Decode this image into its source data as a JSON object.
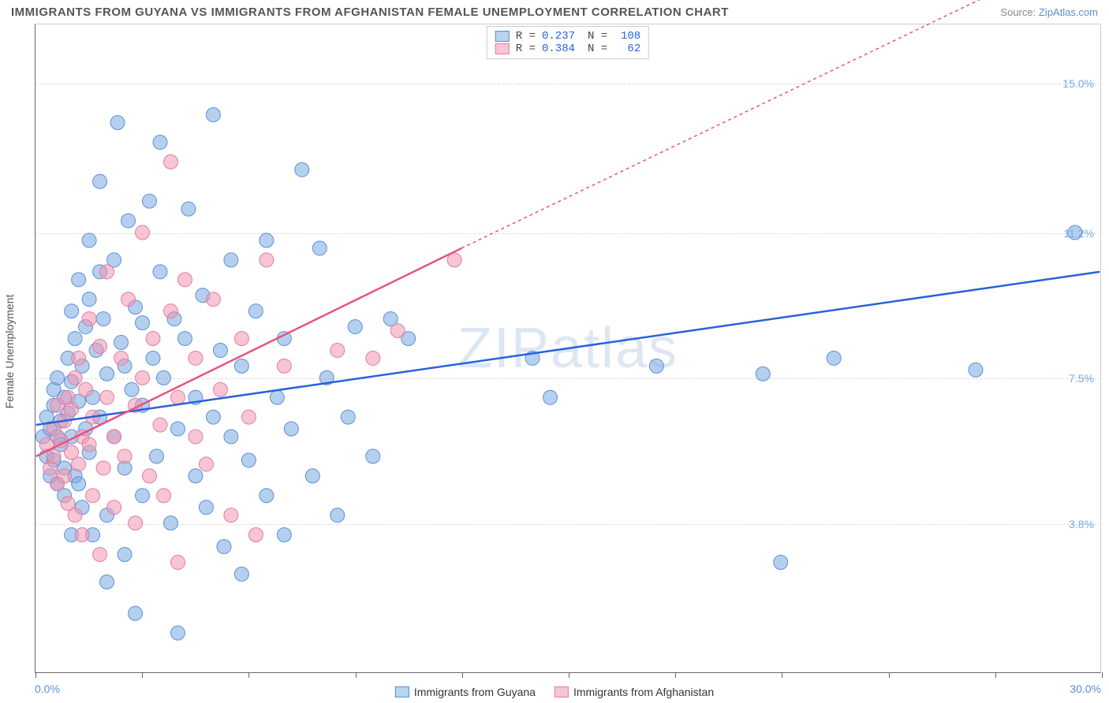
{
  "title": "IMMIGRANTS FROM GUYANA VS IMMIGRANTS FROM AFGHANISTAN FEMALE UNEMPLOYMENT CORRELATION CHART",
  "source_label": "Source:",
  "source_name": "ZipAtlas.com",
  "watermark": "ZIPatlas",
  "yaxis_title": "Female Unemployment",
  "chart": {
    "type": "scatter",
    "xlim": [
      0,
      30
    ],
    "ylim": [
      0,
      16.5
    ],
    "x_tick_positions": [
      0,
      3,
      6,
      9,
      12,
      15,
      18,
      21,
      24,
      27,
      30
    ],
    "x_min_label": "0.0%",
    "x_max_label": "30.0%",
    "y_gridlines": [
      3.8,
      7.5,
      11.2,
      15.0
    ],
    "y_tick_labels": [
      "3.8%",
      "7.5%",
      "11.2%",
      "15.0%"
    ],
    "background_color": "#ffffff",
    "grid_color": "#dddddd",
    "axis_color": "#666666",
    "label_color_blue": "#5b8fd6"
  },
  "series": [
    {
      "name": "Immigrants from Guyana",
      "color_fill": "rgba(120,170,225,0.55)",
      "color_stroke": "#5b8fd6",
      "swatch_fill": "#b8d4f0",
      "swatch_border": "#5b8fd6",
      "trend_color": "#2962d9",
      "trend_dash": "none",
      "trend": {
        "x1": 0,
        "y1": 6.3,
        "x2": 30,
        "y2": 10.2,
        "extrapolate": false
      },
      "R": "0.237",
      "N": "108",
      "points": [
        [
          0.2,
          6.0
        ],
        [
          0.3,
          6.5
        ],
        [
          0.3,
          5.5
        ],
        [
          0.4,
          6.2
        ],
        [
          0.4,
          5.0
        ],
        [
          0.5,
          6.8
        ],
        [
          0.5,
          7.2
        ],
        [
          0.5,
          5.4
        ],
        [
          0.6,
          6.0
        ],
        [
          0.6,
          4.8
        ],
        [
          0.6,
          7.5
        ],
        [
          0.7,
          5.8
        ],
        [
          0.7,
          6.4
        ],
        [
          0.8,
          7.0
        ],
        [
          0.8,
          5.2
        ],
        [
          0.8,
          4.5
        ],
        [
          0.9,
          6.6
        ],
        [
          0.9,
          8.0
        ],
        [
          1.0,
          6.0
        ],
        [
          1.0,
          9.2
        ],
        [
          1.0,
          7.4
        ],
        [
          1.1,
          5.0
        ],
        [
          1.1,
          8.5
        ],
        [
          1.2,
          6.9
        ],
        [
          1.2,
          10.0
        ],
        [
          1.3,
          7.8
        ],
        [
          1.3,
          4.2
        ],
        [
          1.4,
          8.8
        ],
        [
          1.4,
          6.2
        ],
        [
          1.5,
          9.5
        ],
        [
          1.5,
          5.6
        ],
        [
          1.5,
          11.0
        ],
        [
          1.6,
          7.0
        ],
        [
          1.6,
          3.5
        ],
        [
          1.7,
          8.2
        ],
        [
          1.8,
          12.5
        ],
        [
          1.8,
          6.5
        ],
        [
          1.9,
          9.0
        ],
        [
          2.0,
          7.6
        ],
        [
          2.0,
          4.0
        ],
        [
          2.0,
          2.3
        ],
        [
          2.2,
          10.5
        ],
        [
          2.2,
          6.0
        ],
        [
          2.3,
          14.0
        ],
        [
          2.4,
          8.4
        ],
        [
          2.5,
          5.2
        ],
        [
          2.5,
          3.0
        ],
        [
          2.6,
          11.5
        ],
        [
          2.7,
          7.2
        ],
        [
          2.8,
          9.3
        ],
        [
          2.8,
          1.5
        ],
        [
          3.0,
          6.8
        ],
        [
          3.0,
          4.5
        ],
        [
          3.2,
          12.0
        ],
        [
          3.3,
          8.0
        ],
        [
          3.4,
          5.5
        ],
        [
          3.5,
          10.2
        ],
        [
          3.5,
          13.5
        ],
        [
          3.6,
          7.5
        ],
        [
          3.8,
          3.8
        ],
        [
          3.9,
          9.0
        ],
        [
          4.0,
          6.2
        ],
        [
          4.0,
          1.0
        ],
        [
          4.2,
          8.5
        ],
        [
          4.3,
          11.8
        ],
        [
          4.5,
          5.0
        ],
        [
          4.5,
          7.0
        ],
        [
          4.7,
          9.6
        ],
        [
          4.8,
          4.2
        ],
        [
          5.0,
          6.5
        ],
        [
          5.0,
          14.2
        ],
        [
          5.2,
          8.2
        ],
        [
          5.3,
          3.2
        ],
        [
          5.5,
          10.5
        ],
        [
          5.5,
          6.0
        ],
        [
          5.8,
          7.8
        ],
        [
          5.8,
          2.5
        ],
        [
          6.0,
          5.4
        ],
        [
          6.2,
          9.2
        ],
        [
          6.5,
          11.0
        ],
        [
          6.5,
          4.5
        ],
        [
          6.8,
          7.0
        ],
        [
          7.0,
          8.5
        ],
        [
          7.0,
          3.5
        ],
        [
          7.2,
          6.2
        ],
        [
          7.5,
          12.8
        ],
        [
          7.8,
          5.0
        ],
        [
          8.0,
          10.8
        ],
        [
          8.2,
          7.5
        ],
        [
          8.5,
          4.0
        ],
        [
          8.8,
          6.5
        ],
        [
          9.0,
          8.8
        ],
        [
          9.5,
          5.5
        ],
        [
          10.0,
          9.0
        ],
        [
          10.5,
          8.5
        ],
        [
          14.0,
          8.0
        ],
        [
          14.5,
          7.0
        ],
        [
          17.5,
          7.8
        ],
        [
          20.5,
          7.6
        ],
        [
          21.0,
          2.8
        ],
        [
          22.5,
          8.0
        ],
        [
          26.5,
          7.7
        ],
        [
          29.3,
          11.2
        ],
        [
          1.0,
          3.5
        ],
        [
          1.2,
          4.8
        ],
        [
          1.8,
          10.2
        ],
        [
          2.5,
          7.8
        ],
        [
          3.0,
          8.9
        ]
      ]
    },
    {
      "name": "Immigrants from Afghanistan",
      "color_fill": "rgba(240,150,175,0.55)",
      "color_stroke": "#e57ba0",
      "swatch_fill": "#f5c7d5",
      "swatch_border": "#e57ba0",
      "trend_color": "#e5537e",
      "trend_dash": "4,4",
      "trend": {
        "x1": 0,
        "y1": 5.5,
        "x2": 12,
        "y2": 10.8,
        "extrapolate_x2": 30,
        "extrapolate_y2": 18.6
      },
      "R": "0.384",
      "N": "62",
      "points": [
        [
          0.3,
          5.8
        ],
        [
          0.4,
          5.2
        ],
        [
          0.5,
          6.2
        ],
        [
          0.5,
          5.5
        ],
        [
          0.6,
          6.8
        ],
        [
          0.6,
          4.8
        ],
        [
          0.7,
          5.9
        ],
        [
          0.8,
          6.4
        ],
        [
          0.8,
          5.0
        ],
        [
          0.9,
          7.0
        ],
        [
          0.9,
          4.3
        ],
        [
          1.0,
          5.6
        ],
        [
          1.0,
          6.7
        ],
        [
          1.1,
          4.0
        ],
        [
          1.1,
          7.5
        ],
        [
          1.2,
          5.3
        ],
        [
          1.2,
          8.0
        ],
        [
          1.3,
          6.0
        ],
        [
          1.3,
          3.5
        ],
        [
          1.4,
          7.2
        ],
        [
          1.5,
          5.8
        ],
        [
          1.5,
          9.0
        ],
        [
          1.6,
          4.5
        ],
        [
          1.6,
          6.5
        ],
        [
          1.8,
          8.3
        ],
        [
          1.8,
          3.0
        ],
        [
          1.9,
          5.2
        ],
        [
          2.0,
          7.0
        ],
        [
          2.0,
          10.2
        ],
        [
          2.2,
          6.0
        ],
        [
          2.2,
          4.2
        ],
        [
          2.4,
          8.0
        ],
        [
          2.5,
          5.5
        ],
        [
          2.6,
          9.5
        ],
        [
          2.8,
          6.8
        ],
        [
          2.8,
          3.8
        ],
        [
          3.0,
          7.5
        ],
        [
          3.0,
          11.2
        ],
        [
          3.2,
          5.0
        ],
        [
          3.3,
          8.5
        ],
        [
          3.5,
          6.3
        ],
        [
          3.6,
          4.5
        ],
        [
          3.8,
          13.0
        ],
        [
          3.8,
          9.2
        ],
        [
          4.0,
          7.0
        ],
        [
          4.0,
          2.8
        ],
        [
          4.2,
          10.0
        ],
        [
          4.5,
          6.0
        ],
        [
          4.5,
          8.0
        ],
        [
          4.8,
          5.3
        ],
        [
          5.0,
          9.5
        ],
        [
          5.2,
          7.2
        ],
        [
          5.5,
          4.0
        ],
        [
          5.8,
          8.5
        ],
        [
          6.0,
          6.5
        ],
        [
          6.2,
          3.5
        ],
        [
          6.5,
          10.5
        ],
        [
          7.0,
          7.8
        ],
        [
          8.5,
          8.2
        ],
        [
          9.5,
          8.0
        ],
        [
          10.2,
          8.7
        ],
        [
          11.8,
          10.5
        ]
      ]
    }
  ],
  "legend_bottom": [
    "Immigrants from Guyana",
    "Immigrants from Afghanistan"
  ]
}
